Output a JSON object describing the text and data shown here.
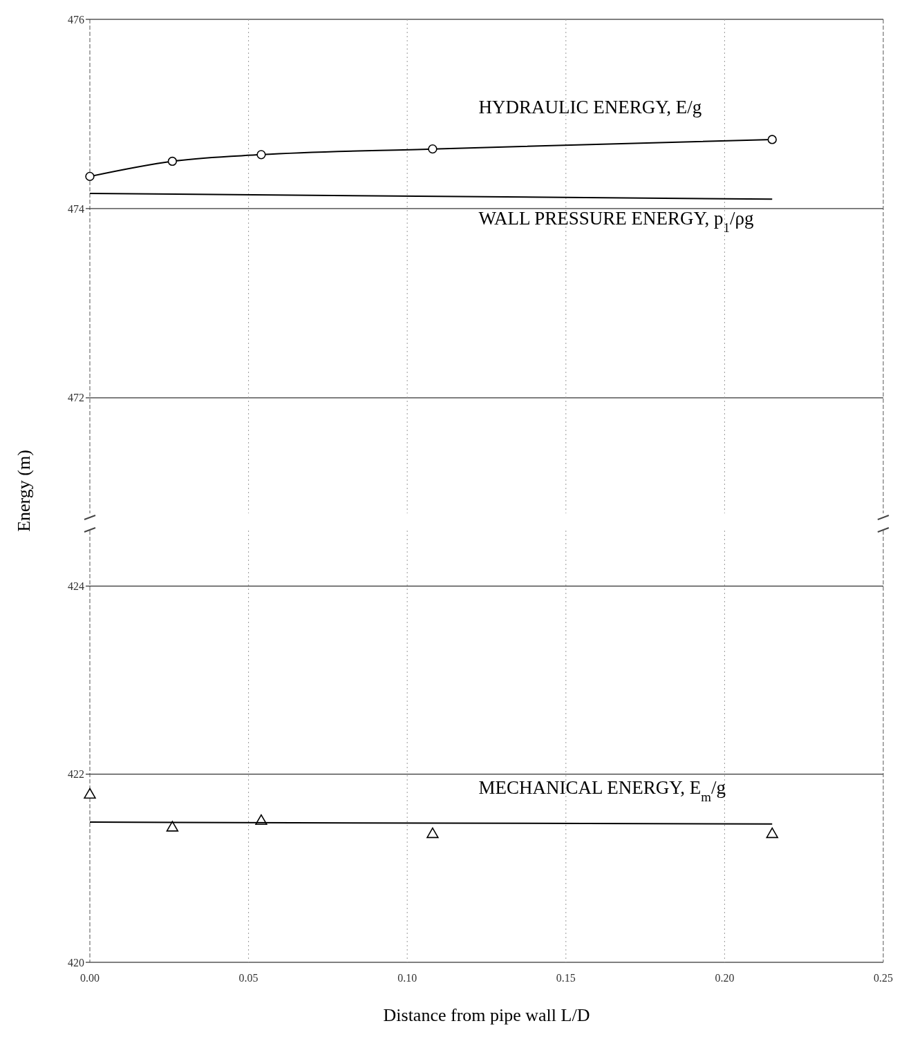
{
  "chart_data": [
    {
      "type": "line",
      "ylabel": "Energy (m)",
      "ylim": [
        470.78,
        476
      ],
      "yticks": [
        472,
        474,
        476
      ],
      "xlim": [
        0,
        0.25
      ],
      "xticks": [
        {
          "value": 0,
          "label": null
        },
        {
          "value": 0.05,
          "label": null
        },
        {
          "value": 0.1,
          "label": null
        },
        {
          "value": 0.15,
          "label": null
        },
        {
          "value": 0.2,
          "label": null
        },
        {
          "value": 0.25,
          "label": null
        }
      ],
      "tick_labels": "y",
      "grid": true,
      "series": [
        {
          "color": "#000000",
          "marker": "circle",
          "x": [
            0,
            0.026,
            0.054,
            0.108,
            0.215
          ],
          "values": [
            474.34,
            474.5,
            474.57,
            474.63,
            474.73
          ]
        },
        {
          "color": "#000000",
          "marker": "none",
          "x": [
            0,
            0.215
          ],
          "values": [
            474.16,
            474.1
          ]
        }
      ],
      "annotations": [
        "HYDRAULIC ENERGY,   E/g",
        "WALL PRESSURE ENERGY, p$_{1}$/ρg"
      ]
    },
    {
      "type": "line",
      "xlabel": "Distance from pipe wall L/D",
      "ylim": [
        420,
        424.59
      ],
      "yticks": [
        420,
        422,
        424
      ],
      "xlim": [
        0,
        0.25
      ],
      "xticks": [
        {
          "value": 0,
          "label": "0.00"
        },
        {
          "value": 0.05,
          "label": "0.05"
        },
        {
          "value": 0.1,
          "label": "0.10"
        },
        {
          "value": 0.15,
          "label": "0.15"
        },
        {
          "value": 0.2,
          "label": "0.20"
        },
        {
          "value": 0.25,
          "label": "0.25"
        }
      ],
      "grid": true,
      "series": [
        {
          "type": "scatter",
          "color": "#000000",
          "marker": "triangle",
          "x": [
            0,
            0.026,
            0.054,
            0.108,
            0.215
          ],
          "values": [
            421.78,
            421.43,
            421.5,
            421.36,
            421.36
          ]
        },
        {
          "color": "#000000",
          "marker": "none",
          "x": [
            0,
            0.215
          ],
          "values": [
            421.49,
            421.47
          ]
        }
      ],
      "annotations": [
        "MECHANICAL ENERGY,  E$_{m}$/g"
      ]
    }
  ]
}
